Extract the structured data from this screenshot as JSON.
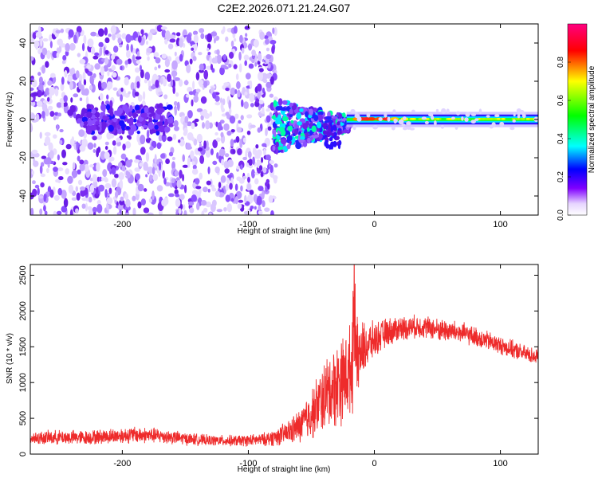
{
  "figure_title": "C2E2.2026.071.21.24.G07",
  "chart_data": [
    {
      "type": "heatmap",
      "title": "C2E2.2026.071.21.24.G07",
      "xlabel": "Height of straight line (km)",
      "ylabel": "Frequency (Hz)",
      "xlim": [
        -273,
        130
      ],
      "ylim": [
        -50,
        50
      ],
      "x_ticks": [
        -200,
        -100,
        0,
        100
      ],
      "x_tick_labels": [
        "-200",
        "-100",
        "0",
        "100"
      ],
      "y_ticks": [
        -40,
        -20,
        0,
        20,
        40
      ],
      "y_tick_labels": [
        "-40",
        "-20",
        "0",
        "20",
        "40"
      ],
      "colorbar": {
        "label": "Normalized spectral amplitude",
        "range": [
          0,
          1
        ],
        "ticks": [
          0,
          0.2,
          0.4,
          0.6,
          0.8
        ],
        "tick_labels": [
          "0.0",
          "0.2",
          "0.4",
          "0.6",
          "0.8"
        ],
        "colormap": [
          "#ffffff",
          "#8000ff",
          "#0000ff",
          "#00ffff",
          "#00ff00",
          "#ffff00",
          "#ff0000",
          "#ff0080"
        ]
      },
      "description_regions": [
        {
          "x_range": [
            -273,
            -80
          ],
          "freq_range": [
            -50,
            48
          ],
          "amplitude": "low scattered noise"
        },
        {
          "x_range": [
            -80,
            -20
          ],
          "freq_range": [
            -18,
            8
          ],
          "amplitude": "medium, converging toward 0 Hz"
        },
        {
          "x_range": [
            -20,
            130
          ],
          "freq_range": [
            -3,
            3
          ],
          "amplitude": "high narrow band at 0 Hz"
        }
      ]
    },
    {
      "type": "line",
      "xlabel": "Height of straight line (km)",
      "ylabel": "SNR (10 * v/v)",
      "xlim": [
        -273,
        130
      ],
      "ylim": [
        0,
        2650
      ],
      "x_ticks": [
        -200,
        -100,
        0,
        100
      ],
      "x_tick_labels": [
        "-200",
        "-100",
        "0",
        "100"
      ],
      "y_ticks": [
        0,
        500,
        1000,
        1500,
        2000,
        2500
      ],
      "y_tick_labels": [
        "0",
        "500",
        "1000",
        "1500",
        "2000",
        "2500"
      ],
      "series": [
        {
          "name": "SNR",
          "color": "#ee2b2b",
          "x": [
            -273,
            -250,
            -230,
            -210,
            -190,
            -170,
            -150,
            -130,
            -110,
            -90,
            -80,
            -70,
            -60,
            -50,
            -40,
            -30,
            -25,
            -20,
            -15,
            -10,
            0,
            10,
            20,
            30,
            40,
            50,
            60,
            70,
            80,
            90,
            100,
            110,
            120,
            130
          ],
          "mean": [
            220,
            235,
            230,
            250,
            270,
            255,
            215,
            190,
            185,
            200,
            230,
            290,
            380,
            560,
            800,
            980,
            1050,
            1150,
            1280,
            1450,
            1600,
            1700,
            1760,
            1780,
            1780,
            1740,
            1720,
            1690,
            1640,
            1580,
            1520,
            1460,
            1400,
            1360
          ],
          "noise": [
            90,
            95,
            95,
            100,
            110,
            100,
            85,
            70,
            75,
            80,
            110,
            150,
            220,
            330,
            470,
            560,
            580,
            600,
            560,
            380,
            230,
            190,
            170,
            150,
            150,
            150,
            150,
            140,
            130,
            130,
            120,
            120,
            110,
            110
          ],
          "spike": {
            "x": -16,
            "value": 2650
          }
        }
      ]
    }
  ]
}
